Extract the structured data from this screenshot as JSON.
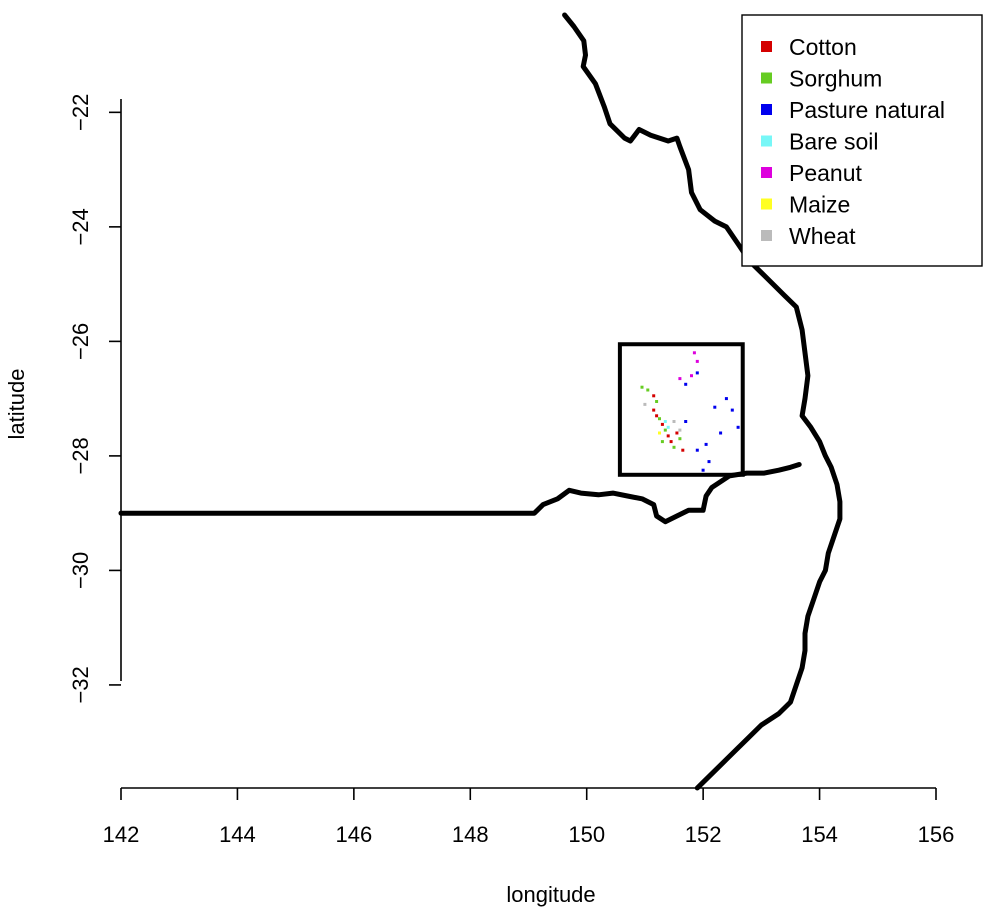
{
  "chart_data": {
    "type": "map",
    "xlabel": "longitude",
    "ylabel": "latitude",
    "xlim": [
      142,
      156
    ],
    "ylim": [
      -33.8,
      -20.3
    ],
    "x_ticks": [
      142,
      144,
      146,
      148,
      150,
      152,
      154,
      156
    ],
    "y_ticks": [
      -22,
      -24,
      -26,
      -28,
      -30,
      -32
    ],
    "legend": {
      "position": "top-right",
      "entries": [
        {
          "label": "Cotton",
          "color": "#d40000"
        },
        {
          "label": "Sorghum",
          "color": "#66cc22"
        },
        {
          "label": "Pasture natural",
          "color": "#0000ee"
        },
        {
          "label": "Bare soil",
          "color": "#77f7f7"
        },
        {
          "label": "Peanut",
          "color": "#dd00dd"
        },
        {
          "label": "Maize",
          "color": "#ffff22"
        },
        {
          "label": "Wheat",
          "color": "#bbbbbb"
        }
      ]
    },
    "study_area_box": {
      "lon_min": 150.57,
      "lon_max": 152.68,
      "lat_min": -28.33,
      "lat_max": -26.05
    },
    "coastline": [
      [
        149.62,
        -20.3
      ],
      [
        149.78,
        -20.5
      ],
      [
        149.95,
        -20.75
      ],
      [
        149.98,
        -21.0
      ],
      [
        149.94,
        -21.2
      ],
      [
        150.15,
        -21.5
      ],
      [
        150.3,
        -21.9
      ],
      [
        150.4,
        -22.2
      ],
      [
        150.65,
        -22.45
      ],
      [
        150.75,
        -22.5
      ],
      [
        150.9,
        -22.3
      ],
      [
        151.1,
        -22.4
      ],
      [
        151.4,
        -22.5
      ],
      [
        151.55,
        -22.45
      ],
      [
        151.6,
        -22.6
      ],
      [
        151.75,
        -23.0
      ],
      [
        151.8,
        -23.4
      ],
      [
        151.95,
        -23.7
      ],
      [
        152.2,
        -23.9
      ],
      [
        152.4,
        -24.0
      ],
      [
        152.6,
        -24.3
      ],
      [
        152.8,
        -24.6
      ],
      [
        153.0,
        -24.8
      ],
      [
        153.2,
        -25.0
      ],
      [
        153.4,
        -25.2
      ],
      [
        153.6,
        -25.4
      ],
      [
        153.7,
        -25.8
      ],
      [
        153.75,
        -26.2
      ],
      [
        153.8,
        -26.6
      ],
      [
        153.75,
        -27.0
      ],
      [
        153.7,
        -27.3
      ],
      [
        153.85,
        -27.5
      ],
      [
        154.0,
        -27.75
      ],
      [
        154.1,
        -28.0
      ],
      [
        154.2,
        -28.2
      ],
      [
        154.3,
        -28.5
      ],
      [
        154.35,
        -28.8
      ],
      [
        154.35,
        -29.1
      ],
      [
        154.25,
        -29.4
      ],
      [
        154.15,
        -29.7
      ],
      [
        154.1,
        -30.0
      ],
      [
        154.0,
        -30.2
      ],
      [
        153.9,
        -30.5
      ],
      [
        153.8,
        -30.8
      ],
      [
        153.75,
        -31.1
      ],
      [
        153.75,
        -31.4
      ],
      [
        153.7,
        -31.7
      ],
      [
        153.6,
        -32.0
      ],
      [
        153.5,
        -32.3
      ],
      [
        153.3,
        -32.5
      ],
      [
        153.0,
        -32.7
      ],
      [
        152.8,
        -32.9
      ],
      [
        152.6,
        -33.1
      ],
      [
        152.4,
        -33.3
      ],
      [
        152.2,
        -33.5
      ],
      [
        152.0,
        -33.7
      ],
      [
        151.9,
        -33.8
      ]
    ],
    "border": [
      [
        142.0,
        -29.0
      ],
      [
        149.1,
        -29.0
      ],
      [
        149.25,
        -28.85
      ],
      [
        149.5,
        -28.75
      ],
      [
        149.7,
        -28.6
      ],
      [
        149.9,
        -28.65
      ],
      [
        150.2,
        -28.68
      ],
      [
        150.45,
        -28.65
      ],
      [
        150.7,
        -28.7
      ],
      [
        150.95,
        -28.75
      ],
      [
        151.15,
        -28.85
      ],
      [
        151.2,
        -29.05
      ],
      [
        151.35,
        -29.15
      ],
      [
        151.55,
        -29.05
      ],
      [
        151.75,
        -28.95
      ],
      [
        152.0,
        -28.95
      ],
      [
        152.05,
        -28.7
      ],
      [
        152.15,
        -28.55
      ],
      [
        152.45,
        -28.35
      ],
      [
        152.75,
        -28.3
      ],
      [
        153.05,
        -28.3
      ],
      [
        153.3,
        -28.25
      ],
      [
        153.5,
        -28.2
      ],
      [
        153.65,
        -28.15
      ]
    ],
    "land_cover_points": [
      [
        151.85,
        -26.2,
        4
      ],
      [
        151.9,
        -26.35,
        4
      ],
      [
        151.8,
        -26.6,
        4
      ],
      [
        151.6,
        -26.65,
        4
      ],
      [
        151.7,
        -26.75,
        2
      ],
      [
        151.9,
        -26.55,
        2
      ],
      [
        150.95,
        -26.8,
        1
      ],
      [
        151.05,
        -26.85,
        1
      ],
      [
        151.15,
        -26.95,
        0
      ],
      [
        151.2,
        -27.05,
        1
      ],
      [
        151.15,
        -27.2,
        0
      ],
      [
        151.2,
        -27.3,
        0
      ],
      [
        151.25,
        -27.35,
        1
      ],
      [
        151.3,
        -27.45,
        0
      ],
      [
        151.35,
        -27.55,
        1
      ],
      [
        151.4,
        -27.65,
        0
      ],
      [
        151.45,
        -27.75,
        0
      ],
      [
        151.5,
        -27.85,
        1
      ],
      [
        151.35,
        -27.4,
        3
      ],
      [
        151.4,
        -27.5,
        3
      ],
      [
        151.55,
        -27.6,
        0
      ],
      [
        151.6,
        -27.7,
        1
      ],
      [
        151.3,
        -27.75,
        1
      ],
      [
        151.65,
        -27.9,
        0
      ],
      [
        152.4,
        -27.0,
        2
      ],
      [
        152.5,
        -27.2,
        2
      ],
      [
        152.6,
        -27.5,
        2
      ],
      [
        152.3,
        -27.6,
        2
      ],
      [
        152.05,
        -27.8,
        2
      ],
      [
        152.1,
        -28.1,
        2
      ],
      [
        152.0,
        -28.25,
        2
      ],
      [
        151.7,
        -27.4,
        2
      ],
      [
        151.9,
        -27.9,
        2
      ],
      [
        152.2,
        -27.15,
        2
      ],
      [
        151.25,
        -27.6,
        5
      ],
      [
        151.5,
        -27.4,
        6
      ],
      [
        151.6,
        -27.55,
        6
      ],
      [
        151.0,
        -27.1,
        6
      ]
    ]
  }
}
